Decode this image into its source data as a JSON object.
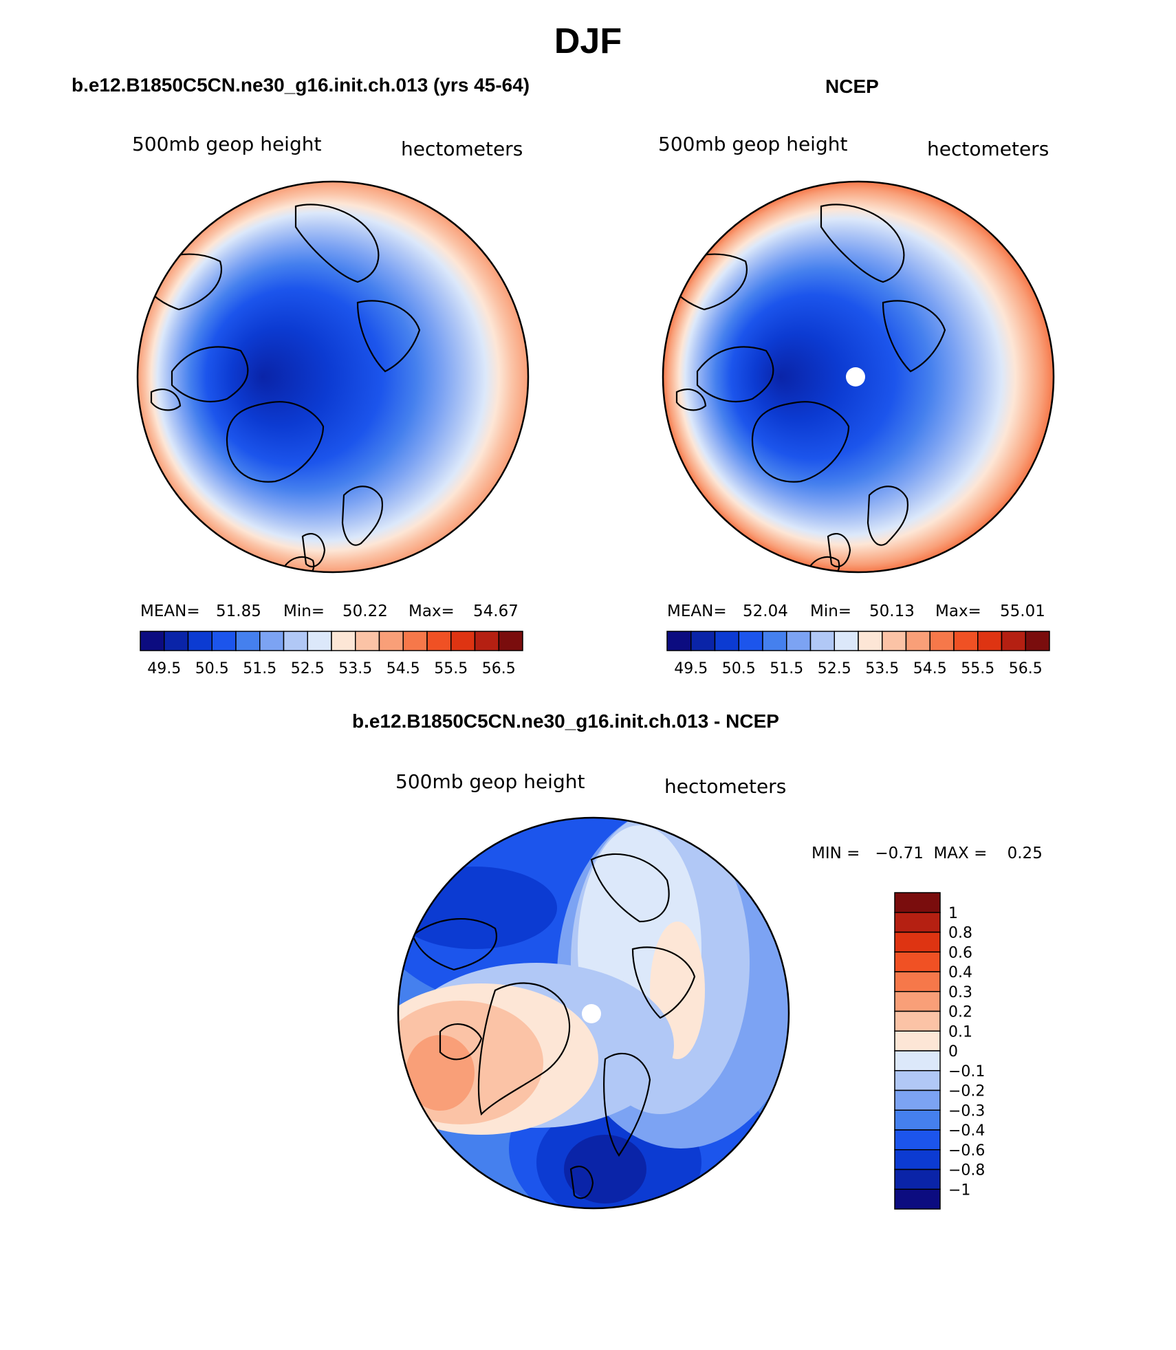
{
  "figure": {
    "title": "DJF"
  },
  "panels": [
    {
      "title": "b.e12.B1850C5CN.ne30_g16.init.ch.013 (yrs 45-64)",
      "left_label": "500mb geop height",
      "right_label": "hectometers",
      "mean_label": "MEAN=",
      "mean_value": "51.85",
      "min_label": "Min=",
      "min_value": "50.22",
      "max_label": "Max=",
      "max_value": "54.67"
    },
    {
      "title": "NCEP",
      "left_label": "500mb geop height",
      "right_label": "hectometers",
      "mean_label": "MEAN=",
      "mean_value": "52.04",
      "min_label": "Min=",
      "min_value": "50.13",
      "max_label": "Max=",
      "max_value": "55.01"
    },
    {
      "title": "b.e12.B1850C5CN.ne30_g16.init.ch.013 - NCEP",
      "left_label": "500mb geop height",
      "right_label": "hectometers",
      "minmax_text": "MIN =   −0.71  MAX =    0.25"
    }
  ],
  "colorbar_abs": {
    "ticks": [
      "49.5",
      "50.5",
      "51.5",
      "52.5",
      "53.5",
      "54.5",
      "55.5",
      "56.5"
    ],
    "colors": [
      "#0c0c80",
      "#0a24a8",
      "#0c3bd2",
      "#1c55ec",
      "#4580ee",
      "#7ca3f3",
      "#b1c8f6",
      "#dce8fa",
      "#fde6d6",
      "#fbc3a6",
      "#f99f78",
      "#f6784a",
      "#f05124",
      "#de3412",
      "#b52012",
      "#7a0d0d"
    ]
  },
  "colorbar_diff": {
    "labels": [
      "1",
      "0.8",
      "0.6",
      "0.4",
      "0.3",
      "0.2",
      "0.1",
      "0",
      "−0.1",
      "−0.2",
      "−0.3",
      "−0.4",
      "−0.6",
      "−0.8",
      "−1"
    ],
    "colors": [
      "#7a0d0d",
      "#b52012",
      "#de3412",
      "#f05124",
      "#f6784a",
      "#f99f78",
      "#fbc3a6",
      "#fde6d6",
      "#dce8fa",
      "#b1c8f6",
      "#7ca3f3",
      "#4580ee",
      "#1c55ec",
      "#0c3bd2",
      "#0a24a8",
      "#0c0c80"
    ]
  },
  "fields": {
    "model": {
      "pole": 50.5,
      "equator": 55.0,
      "wave": 0.9
    },
    "ncep": {
      "pole": 50.3,
      "equator": 55.4,
      "wave": 1.0
    },
    "diff": {
      "low": -0.71,
      "high": 0.25
    }
  }
}
